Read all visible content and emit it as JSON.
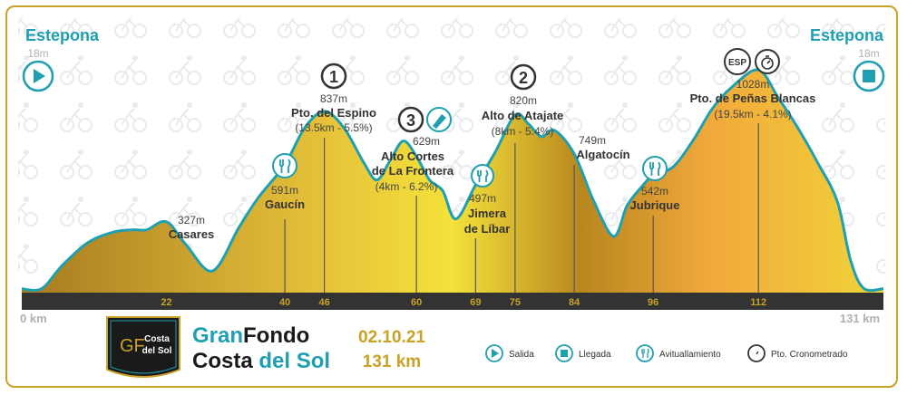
{
  "start": {
    "town": "Estepona",
    "elevation": "18m",
    "km": "0 km"
  },
  "finish": {
    "town": "Estepona",
    "elevation": "18m",
    "km": "131 km"
  },
  "colors": {
    "teal": "#1f9fb0",
    "gold": "#c9a227",
    "track": "#333333"
  },
  "axis": {
    "km_max": 131,
    "elev_max": 1100,
    "ticks": [
      "22",
      "40",
      "46",
      "60",
      "69",
      "75",
      "84",
      "96",
      "112"
    ]
  },
  "chart_data": {
    "type": "area",
    "xlabel": "",
    "ylabel": "",
    "x": [
      0,
      3,
      6,
      10,
      14,
      17,
      19,
      22,
      25,
      29,
      33,
      36,
      40,
      43,
      46,
      49,
      52,
      54,
      56,
      58,
      60,
      62,
      64,
      66,
      69,
      72,
      75,
      77,
      79,
      81,
      84,
      87,
      90,
      92,
      94,
      96,
      99,
      102,
      105,
      108,
      112,
      115,
      118,
      121,
      124,
      126,
      128,
      131
    ],
    "y": [
      18,
      18,
      120,
      230,
      280,
      290,
      290,
      327,
      220,
      100,
      300,
      440,
      591,
      760,
      837,
      760,
      600,
      520,
      610,
      700,
      629,
      520,
      470,
      340,
      497,
      650,
      820,
      780,
      720,
      749,
      640,
      420,
      260,
      400,
      480,
      542,
      580,
      700,
      850,
      950,
      1028,
      900,
      760,
      600,
      420,
      150,
      20,
      18
    ]
  },
  "markers": [
    {
      "id": "start",
      "label": "Salida"
    },
    {
      "id": "casares",
      "elevation": "327m",
      "name_lines": [
        "Casares"
      ]
    },
    {
      "id": "gaucin",
      "elevation": "591m",
      "name_lines": [
        "Gaucín"
      ],
      "icon": "feed-icon"
    },
    {
      "id": "espino",
      "number": "1",
      "elevation": "837m",
      "name_lines": [
        "Pto. del Espino"
      ],
      "detail": "(13.5km - 5.5%)"
    },
    {
      "id": "cortes",
      "number": "3",
      "elevation": "629m",
      "name_lines": [
        "Alto Cortes",
        "de La Frontera"
      ],
      "detail": "(4km - 6.2%)",
      "icon": "gel-icon"
    },
    {
      "id": "jimera",
      "elevation": "497m",
      "name_lines": [
        "Jimera",
        "de Líbar"
      ],
      "icon": "feed-icon"
    },
    {
      "id": "atajate",
      "number": "2",
      "elevation": "820m",
      "name_lines": [
        "Alto de Atajate"
      ],
      "detail": "(8km - 5.4%)"
    },
    {
      "id": "algatocin",
      "elevation": "749m",
      "name_lines": [
        "Algatocín"
      ]
    },
    {
      "id": "jubrique",
      "elevation": "542m",
      "name_lines": [
        "Jubrique"
      ],
      "icon": "feed-icon"
    },
    {
      "id": "penas",
      "elevation": "1028m",
      "name_lines": [
        "Pto. de Peñas Blancas"
      ],
      "detail": "(19.5km - 4.1%)",
      "badge": "ESP"
    }
  ],
  "event": {
    "logo_line1": "GF",
    "logo_line2": "Costa",
    "logo_line3": "del Sol",
    "title_part1": "Gran",
    "title_part2": "Fondo",
    "title_part3": "Costa",
    "title_part4": "del Sol",
    "date": "02.10.21",
    "distance": "131 km"
  },
  "legend": [
    {
      "icon": "play-icon",
      "label": "Salida"
    },
    {
      "icon": "stop-icon",
      "label": "Llegada"
    },
    {
      "icon": "feed-icon",
      "label": "Avituallamiento"
    },
    {
      "icon": "stopwatch-icon",
      "label": "Pto. Cronometrado"
    }
  ]
}
